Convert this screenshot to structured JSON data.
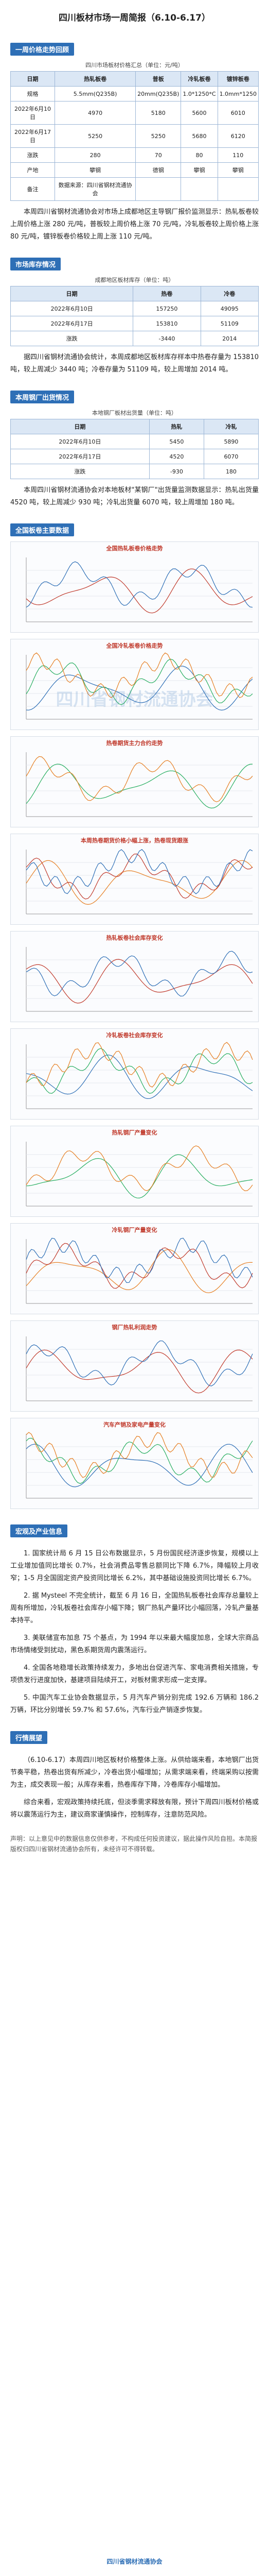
{
  "header": {
    "title": "四川板材市场一周简报（6.10-6.17）"
  },
  "price": {
    "heading": "一周价格走势回顾",
    "caption": "四川市场板材价格汇总（单位：元/吨）",
    "table": {
      "columns": [
        "日期",
        "热轧板卷",
        "普板",
        "冷轧板卷",
        "镀锌板卷"
      ],
      "rows": [
        [
          "规格",
          "5.5mm(Q235B)",
          "20mm(Q235B)",
          "1.0*1250*C",
          "1.0mm*1250"
        ],
        [
          "2022年6月10日",
          "4970",
          "5180",
          "5600",
          "6010"
        ],
        [
          "2022年6月17日",
          "5250",
          "5250",
          "5680",
          "6120"
        ],
        [
          "涨跌",
          "280",
          "70",
          "80",
          "110"
        ],
        [
          "产地",
          "攀钢",
          "德钢",
          "攀钢",
          "攀钢"
        ],
        [
          "备注",
          "数据来源：四川省钢材流通协会",
          "",
          "",
          ""
        ]
      ]
    },
    "paragraphs": [
      "本周四川省钢材流通协会对市场上成都地区主导钢厂报价监测显示：热轧板卷较上周价格上涨 280 元/吨，普板较上周价格上涨 70 元/吨，冷轧板卷较上周价格上涨 80 元/吨，镀锌板卷价格较上周上涨 110 元/吨。"
    ]
  },
  "inventory": {
    "heading": "市场库存情况",
    "caption": "成都地区板材库存（单位：吨）",
    "table": {
      "columns": [
        "日期",
        "热卷",
        "冷卷"
      ],
      "rows": [
        [
          "2022年6月10日",
          "157250",
          "49095"
        ],
        [
          "2022年6月17日",
          "153810",
          "51109"
        ],
        [
          "涨跌",
          "-3440",
          "2014"
        ]
      ]
    },
    "paragraphs": [
      "据四川省钢材流通协会统计，本周成都地区板材库存样本中热卷存量为 153810 吨，较上周减少 3440 吨；冷卷存量为 51109 吨，较上周增加 2014 吨。"
    ]
  },
  "shipment": {
    "heading": "本周钢厂出货情况",
    "caption": "本地钢厂板材出货量（单位：吨）",
    "table": {
      "columns": [
        "日期",
        "热轧",
        "冷轧"
      ],
      "rows": [
        [
          "2022年6月10日",
          "5450",
          "5890"
        ],
        [
          "2022年6月17日",
          "4520",
          "6070"
        ],
        [
          "涨跌",
          "-930",
          "180"
        ]
      ]
    },
    "paragraphs": [
      "本周四川省钢材流通协会对本地板材\"某钢厂\"出货量监测数据显示：热轧出货量 4520 吨，较上周减少 930 吨；冷轧出货量 6070 吨，较上周增加 180 吨。"
    ]
  },
  "charts": {
    "heading": "全国板卷主要数据",
    "watermark": "四川省钢材流通协会",
    "items": [
      {
        "title": "全国热轧板卷价格走势"
      },
      {
        "title": "全国冷轧板卷价格走势"
      },
      {
        "title": "热卷期货主力合约走势"
      },
      {
        "title": "本周热卷期货价格小幅上涨，热卷现货跟涨"
      },
      {
        "title": "热轧板卷社会库存变化"
      },
      {
        "title": "冷轧板卷社会库存变化"
      },
      {
        "title": "热轧钢厂产量变化"
      },
      {
        "title": "冷轧钢厂产量变化"
      },
      {
        "title": "钢厂热轧利润走势"
      },
      {
        "title": "汽车产销及家电产量变化"
      }
    ]
  },
  "macro": {
    "heading": "宏观及产业信息",
    "paragraphs": [
      "1. 国家统计局 6 月 15 日公布数据显示，5 月份国民经济逐步恢复，规模以上工业增加值同比增长 0.7%，社会消费品零售总额同比下降 6.7%，降幅较上月收窄；1-5 月全国固定资产投资同比增长 6.2%，其中基础设施投资同比增长 6.7%。",
      "2. 据 Mysteel 不完全统计，截至 6 月 16 日，全国热轧板卷社会库存总量较上周有所增加，冷轧板卷社会库存小幅下降；钢厂热轧产量环比小幅回落，冷轧产量基本持平。",
      "3. 美联储宣布加息 75 个基点，为 1994 年以来最大幅度加息，全球大宗商品市场情绪受到扰动，黑色系期货周内震荡运行。",
      "4. 全国各地稳增长政策持续发力，多地出台促进汽车、家电消费相关措施，专项债发行进度加快，基建项目陆续开工，对板材需求形成一定支撑。",
      "5. 中国汽车工业协会数据显示，5 月汽车产销分别完成 192.6 万辆和 186.2 万辆，环比分别增长 59.7% 和 57.6%，汽车行业产销逐步恢复。"
    ]
  },
  "outlook": {
    "heading": "行情展望",
    "paragraphs": [
      "（6.10-6.17）本周四川地区板材价格整体上涨。从供给端来看，本地钢厂出货节奏平稳，热卷出货有所减少，冷卷出货小幅增加；从需求端来看，终端采购以按需为主，成交表现一般；从库存来看，热卷库存下降，冷卷库存小幅增加。",
      "综合来看，宏观政策持续托底，但淡季需求释放有限，预计下周四川板材价格或将以震荡运行为主，建议商家谨慎操作，控制库存，注意防范风险。"
    ]
  },
  "disclaimer": "声明：以上意见中的数据信息仅供参考，不构成任何投资建议，据此操作风险自担。本简报版权归四川省钢材流通协会所有，未经许可不得转载。",
  "footer": "四川省钢材流通协会"
}
